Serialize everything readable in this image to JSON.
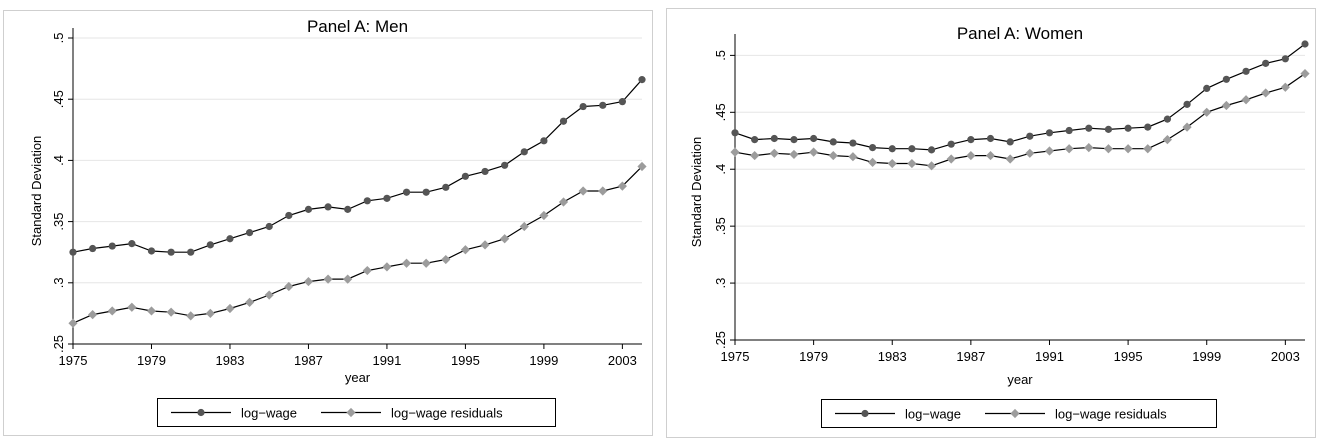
{
  "chart_data": [
    {
      "type": "line",
      "title": "Panel A: Men",
      "xlabel": "year",
      "ylabel": "Standard Deviation",
      "x_ticks": [
        "1975",
        "1979",
        "1983",
        "1987",
        "1991",
        "1995",
        "1999",
        "2003"
      ],
      "y_ticks": [
        ".25",
        ".3",
        ".35",
        ".4",
        ".45",
        ".5"
      ],
      "xlim": [
        1975,
        2004
      ],
      "ylim": [
        0.25,
        0.5
      ],
      "grid": true,
      "legend_position": "bottom",
      "x": [
        1975,
        1976,
        1977,
        1978,
        1979,
        1980,
        1981,
        1982,
        1983,
        1984,
        1985,
        1986,
        1987,
        1988,
        1989,
        1990,
        1991,
        1992,
        1993,
        1994,
        1995,
        1996,
        1997,
        1998,
        1999,
        2000,
        2001,
        2002,
        2003,
        2004
      ],
      "series": [
        {
          "name": "log−wage",
          "marker": "circle",
          "color": "#555555",
          "values": [
            0.325,
            0.328,
            0.33,
            0.332,
            0.326,
            0.325,
            0.325,
            0.331,
            0.336,
            0.341,
            0.346,
            0.355,
            0.36,
            0.362,
            0.36,
            0.367,
            0.369,
            0.374,
            0.374,
            0.378,
            0.387,
            0.391,
            0.396,
            0.407,
            0.416,
            0.432,
            0.444,
            0.445,
            0.448,
            0.466
          ]
        },
        {
          "name": "log−wage residuals",
          "marker": "diamond",
          "color": "#9c9c9c",
          "values": [
            0.267,
            0.274,
            0.277,
            0.28,
            0.277,
            0.276,
            0.273,
            0.275,
            0.279,
            0.284,
            0.29,
            0.297,
            0.301,
            0.303,
            0.303,
            0.31,
            0.313,
            0.316,
            0.316,
            0.319,
            0.327,
            0.331,
            0.336,
            0.346,
            0.355,
            0.366,
            0.375,
            0.375,
            0.379,
            0.395
          ]
        }
      ]
    },
    {
      "type": "line",
      "title": "Panel A: Women",
      "xlabel": "year",
      "ylabel": "Standard Deviation",
      "x_ticks": [
        "1975",
        "1979",
        "1983",
        "1987",
        "1991",
        "1995",
        "1999",
        "2003"
      ],
      "y_ticks": [
        ".25",
        ".3",
        ".35",
        ".4",
        ".45",
        ".5"
      ],
      "xlim": [
        1975,
        2004
      ],
      "ylim": [
        0.25,
        0.51
      ],
      "grid": true,
      "legend_position": "bottom",
      "x": [
        1975,
        1976,
        1977,
        1978,
        1979,
        1980,
        1981,
        1982,
        1983,
        1984,
        1985,
        1986,
        1987,
        1988,
        1989,
        1990,
        1991,
        1992,
        1993,
        1994,
        1995,
        1996,
        1997,
        1998,
        1999,
        2000,
        2001,
        2002,
        2003,
        2004
      ],
      "series": [
        {
          "name": "log−wage",
          "marker": "circle",
          "color": "#555555",
          "values": [
            0.432,
            0.426,
            0.427,
            0.426,
            0.427,
            0.424,
            0.423,
            0.419,
            0.418,
            0.418,
            0.417,
            0.422,
            0.426,
            0.427,
            0.424,
            0.429,
            0.432,
            0.434,
            0.436,
            0.435,
            0.436,
            0.437,
            0.444,
            0.457,
            0.471,
            0.479,
            0.486,
            0.493,
            0.497,
            0.51
          ]
        },
        {
          "name": "log−wage residuals",
          "marker": "diamond",
          "color": "#9c9c9c",
          "values": [
            0.415,
            0.412,
            0.414,
            0.413,
            0.415,
            0.412,
            0.411,
            0.406,
            0.405,
            0.405,
            0.403,
            0.409,
            0.412,
            0.412,
            0.409,
            0.414,
            0.416,
            0.418,
            0.419,
            0.418,
            0.418,
            0.418,
            0.426,
            0.437,
            0.45,
            0.456,
            0.461,
            0.467,
            0.472,
            0.484
          ]
        }
      ]
    }
  ]
}
